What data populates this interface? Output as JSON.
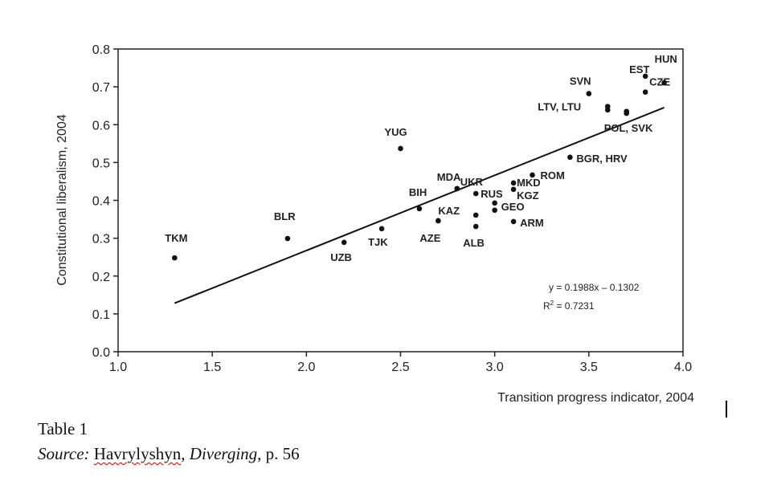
{
  "chart_data": {
    "type": "scatter",
    "xlabel": "Transition progress indicator, 2004",
    "ylabel": "Constitutional liberalism, 2004",
    "xlim": [
      1.0,
      4.0
    ],
    "ylim": [
      0.0,
      0.8
    ],
    "xticks": [
      "1.0",
      "1.5",
      "2.0",
      "2.5",
      "3.0",
      "3.5",
      "4.0"
    ],
    "yticks": [
      "0.0",
      "0.1",
      "0.2",
      "0.3",
      "0.4",
      "0.5",
      "0.6",
      "0.7",
      "0.8"
    ],
    "grid": false,
    "points": [
      {
        "label": "TKM",
        "x": 1.3,
        "y": 0.248
      },
      {
        "label": "BLR",
        "x": 1.9,
        "y": 0.299
      },
      {
        "label": "UZB",
        "x": 2.2,
        "y": 0.289
      },
      {
        "label": "TJK",
        "x": 2.4,
        "y": 0.325
      },
      {
        "label": "YUG",
        "x": 2.5,
        "y": 0.537
      },
      {
        "label": "BIH",
        "x": 2.6,
        "y": 0.378
      },
      {
        "label": "KAZ",
        "x": 2.7,
        "y": 0.346
      },
      {
        "label": "AZE",
        "x": 2.7,
        "y": 0.346
      },
      {
        "label": "MDA",
        "x": 2.8,
        "y": 0.431
      },
      {
        "label": "UKR",
        "x": 2.8,
        "y": 0.431
      },
      {
        "label": "RUS",
        "x": 2.9,
        "y": 0.418
      },
      {
        "label": "",
        "x": 2.9,
        "y": 0.361
      },
      {
        "label": "ALB",
        "x": 2.9,
        "y": 0.331
      },
      {
        "label": "",
        "x": 3.0,
        "y": 0.393
      },
      {
        "label": "GEO",
        "x": 3.0,
        "y": 0.374
      },
      {
        "label": "MKD",
        "x": 3.1,
        "y": 0.446
      },
      {
        "label": "KGZ",
        "x": 3.1,
        "y": 0.429
      },
      {
        "label": "ARM",
        "x": 3.1,
        "y": 0.344
      },
      {
        "label": "ROM",
        "x": 3.2,
        "y": 0.467
      },
      {
        "label": "BGR, HRV",
        "x": 3.4,
        "y": 0.514
      },
      {
        "label": "SVN",
        "x": 3.5,
        "y": 0.682
      },
      {
        "label": "LTV, LTU",
        "x": 3.6,
        "y": 0.648
      },
      {
        "label": "",
        "x": 3.6,
        "y": 0.639
      },
      {
        "label": "POL, SVK",
        "x": 3.7,
        "y": 0.635
      },
      {
        "label": "",
        "x": 3.7,
        "y": 0.63
      },
      {
        "label": "CZE",
        "x": 3.8,
        "y": 0.686
      },
      {
        "label": "EST",
        "x": 3.8,
        "y": 0.728
      },
      {
        "label": "HUN",
        "x": 3.9,
        "y": 0.711
      }
    ],
    "trendline": {
      "slope": 0.1988,
      "intercept": -0.1302,
      "x_range": [
        1.3,
        3.9
      ]
    },
    "annotations": {
      "equation": "y = 0.1988x – 0.1302",
      "r2_label": "R",
      "r2_sup": "2",
      "r2_value": " = 0.7231"
    }
  },
  "caption": {
    "table": "Table 1",
    "source_label": "Source:",
    "author": "Havrylyshyn",
    "comma": ",",
    "title": "Diverging",
    "page": ", p. 56"
  }
}
